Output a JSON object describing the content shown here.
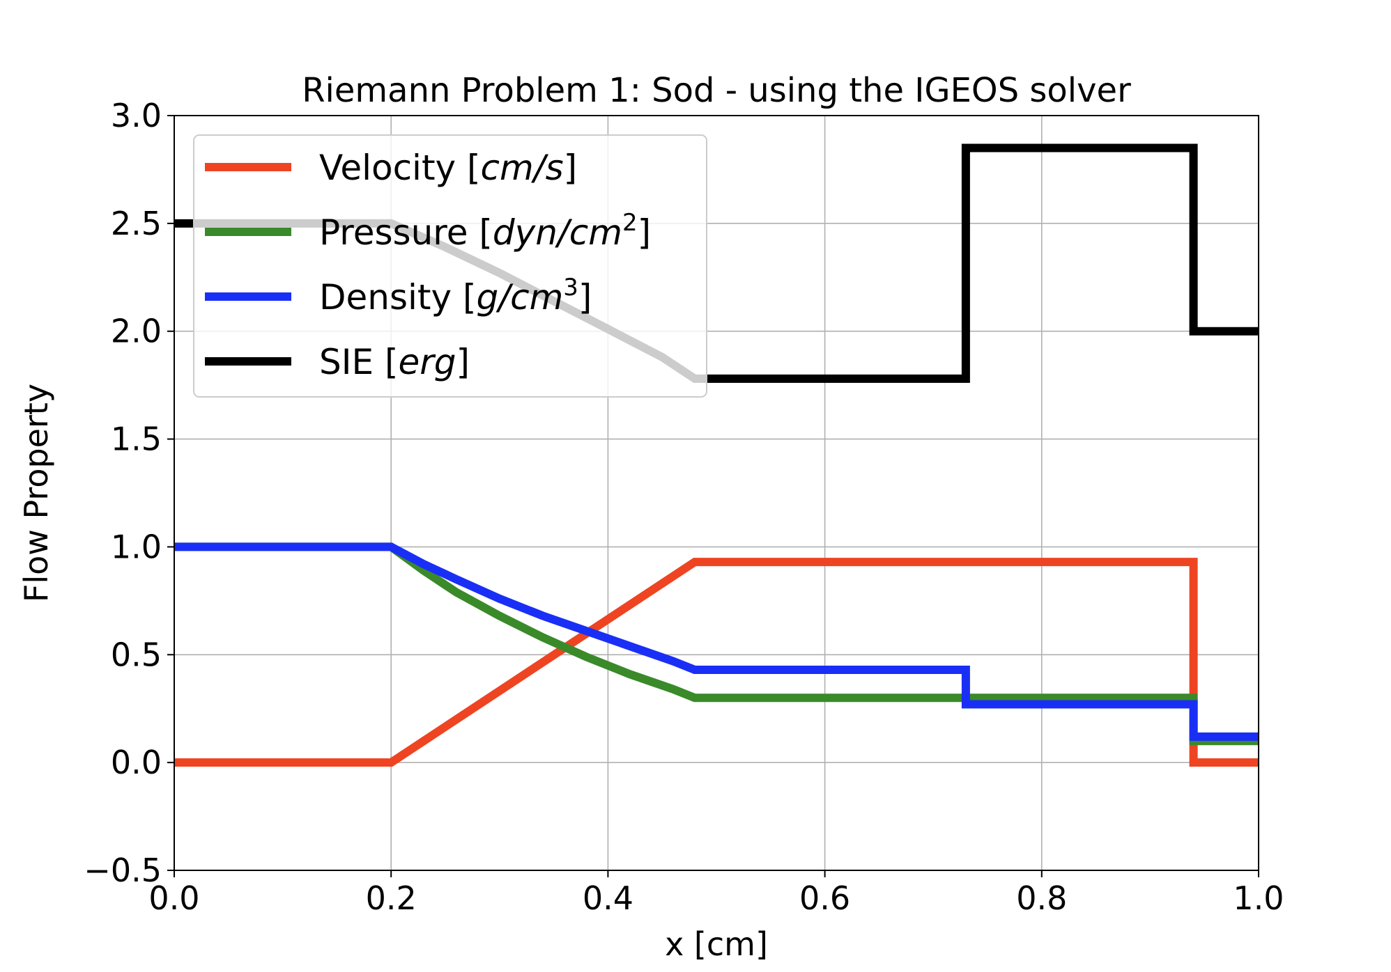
{
  "chart_data": {
    "type": "line",
    "title": "Riemann Problem 1: Sod - using the IGEOS solver",
    "xlabel": "x [cm]",
    "ylabel": "Flow Property",
    "xlim": [
      0.0,
      1.0
    ],
    "ylim": [
      -0.5,
      3.0
    ],
    "xticks": [
      0.0,
      0.2,
      0.4,
      0.6,
      0.8,
      1.0
    ],
    "xtick_labels": [
      "0.0",
      "0.2",
      "0.4",
      "0.6",
      "0.8",
      "1.0"
    ],
    "yticks": [
      -0.5,
      0.0,
      0.5,
      1.0,
      1.5,
      2.0,
      2.5,
      3.0
    ],
    "ytick_labels": [
      "−0.5",
      "0.0",
      "0.5",
      "1.0",
      "1.5",
      "2.0",
      "2.5",
      "3.0"
    ],
    "grid": true,
    "legend_position": "top-left",
    "series": [
      {
        "name": "Velocity",
        "name_unit": "cm/s",
        "legend_sup": "",
        "color": "#ee4422",
        "x": [
          0.0,
          0.2,
          0.48,
          0.94,
          0.94,
          1.0
        ],
        "y": [
          0.0,
          0.0,
          0.93,
          0.93,
          0.0,
          0.0
        ]
      },
      {
        "name": "Pressure",
        "name_unit": "dyn/cm",
        "legend_sup": "2",
        "color": "#3a8a2a",
        "x": [
          0.0,
          0.2,
          0.23,
          0.26,
          0.3,
          0.34,
          0.38,
          0.42,
          0.46,
          0.48,
          0.94,
          0.94,
          1.0
        ],
        "y": [
          1.0,
          1.0,
          0.89,
          0.79,
          0.68,
          0.58,
          0.49,
          0.41,
          0.34,
          0.3,
          0.3,
          0.1,
          0.1
        ]
      },
      {
        "name": "Density",
        "name_unit": "g/cm",
        "legend_sup": "3",
        "color": "#1a2ff5",
        "x": [
          0.0,
          0.2,
          0.23,
          0.26,
          0.3,
          0.34,
          0.38,
          0.42,
          0.46,
          0.48,
          0.73,
          0.73,
          0.94,
          0.94,
          1.0
        ],
        "y": [
          1.0,
          1.0,
          0.92,
          0.85,
          0.76,
          0.68,
          0.61,
          0.54,
          0.47,
          0.43,
          0.43,
          0.27,
          0.27,
          0.12,
          0.12
        ]
      },
      {
        "name": "SIE",
        "name_unit": "erg",
        "legend_sup": "",
        "color": "#000000",
        "x": [
          0.0,
          0.2,
          0.25,
          0.3,
          0.35,
          0.4,
          0.45,
          0.48,
          0.73,
          0.73,
          0.94,
          0.94,
          1.0
        ],
        "y": [
          2.5,
          2.5,
          2.39,
          2.27,
          2.14,
          2.01,
          1.88,
          1.78,
          1.78,
          2.85,
          2.85,
          2.0,
          2.0
        ]
      }
    ]
  }
}
